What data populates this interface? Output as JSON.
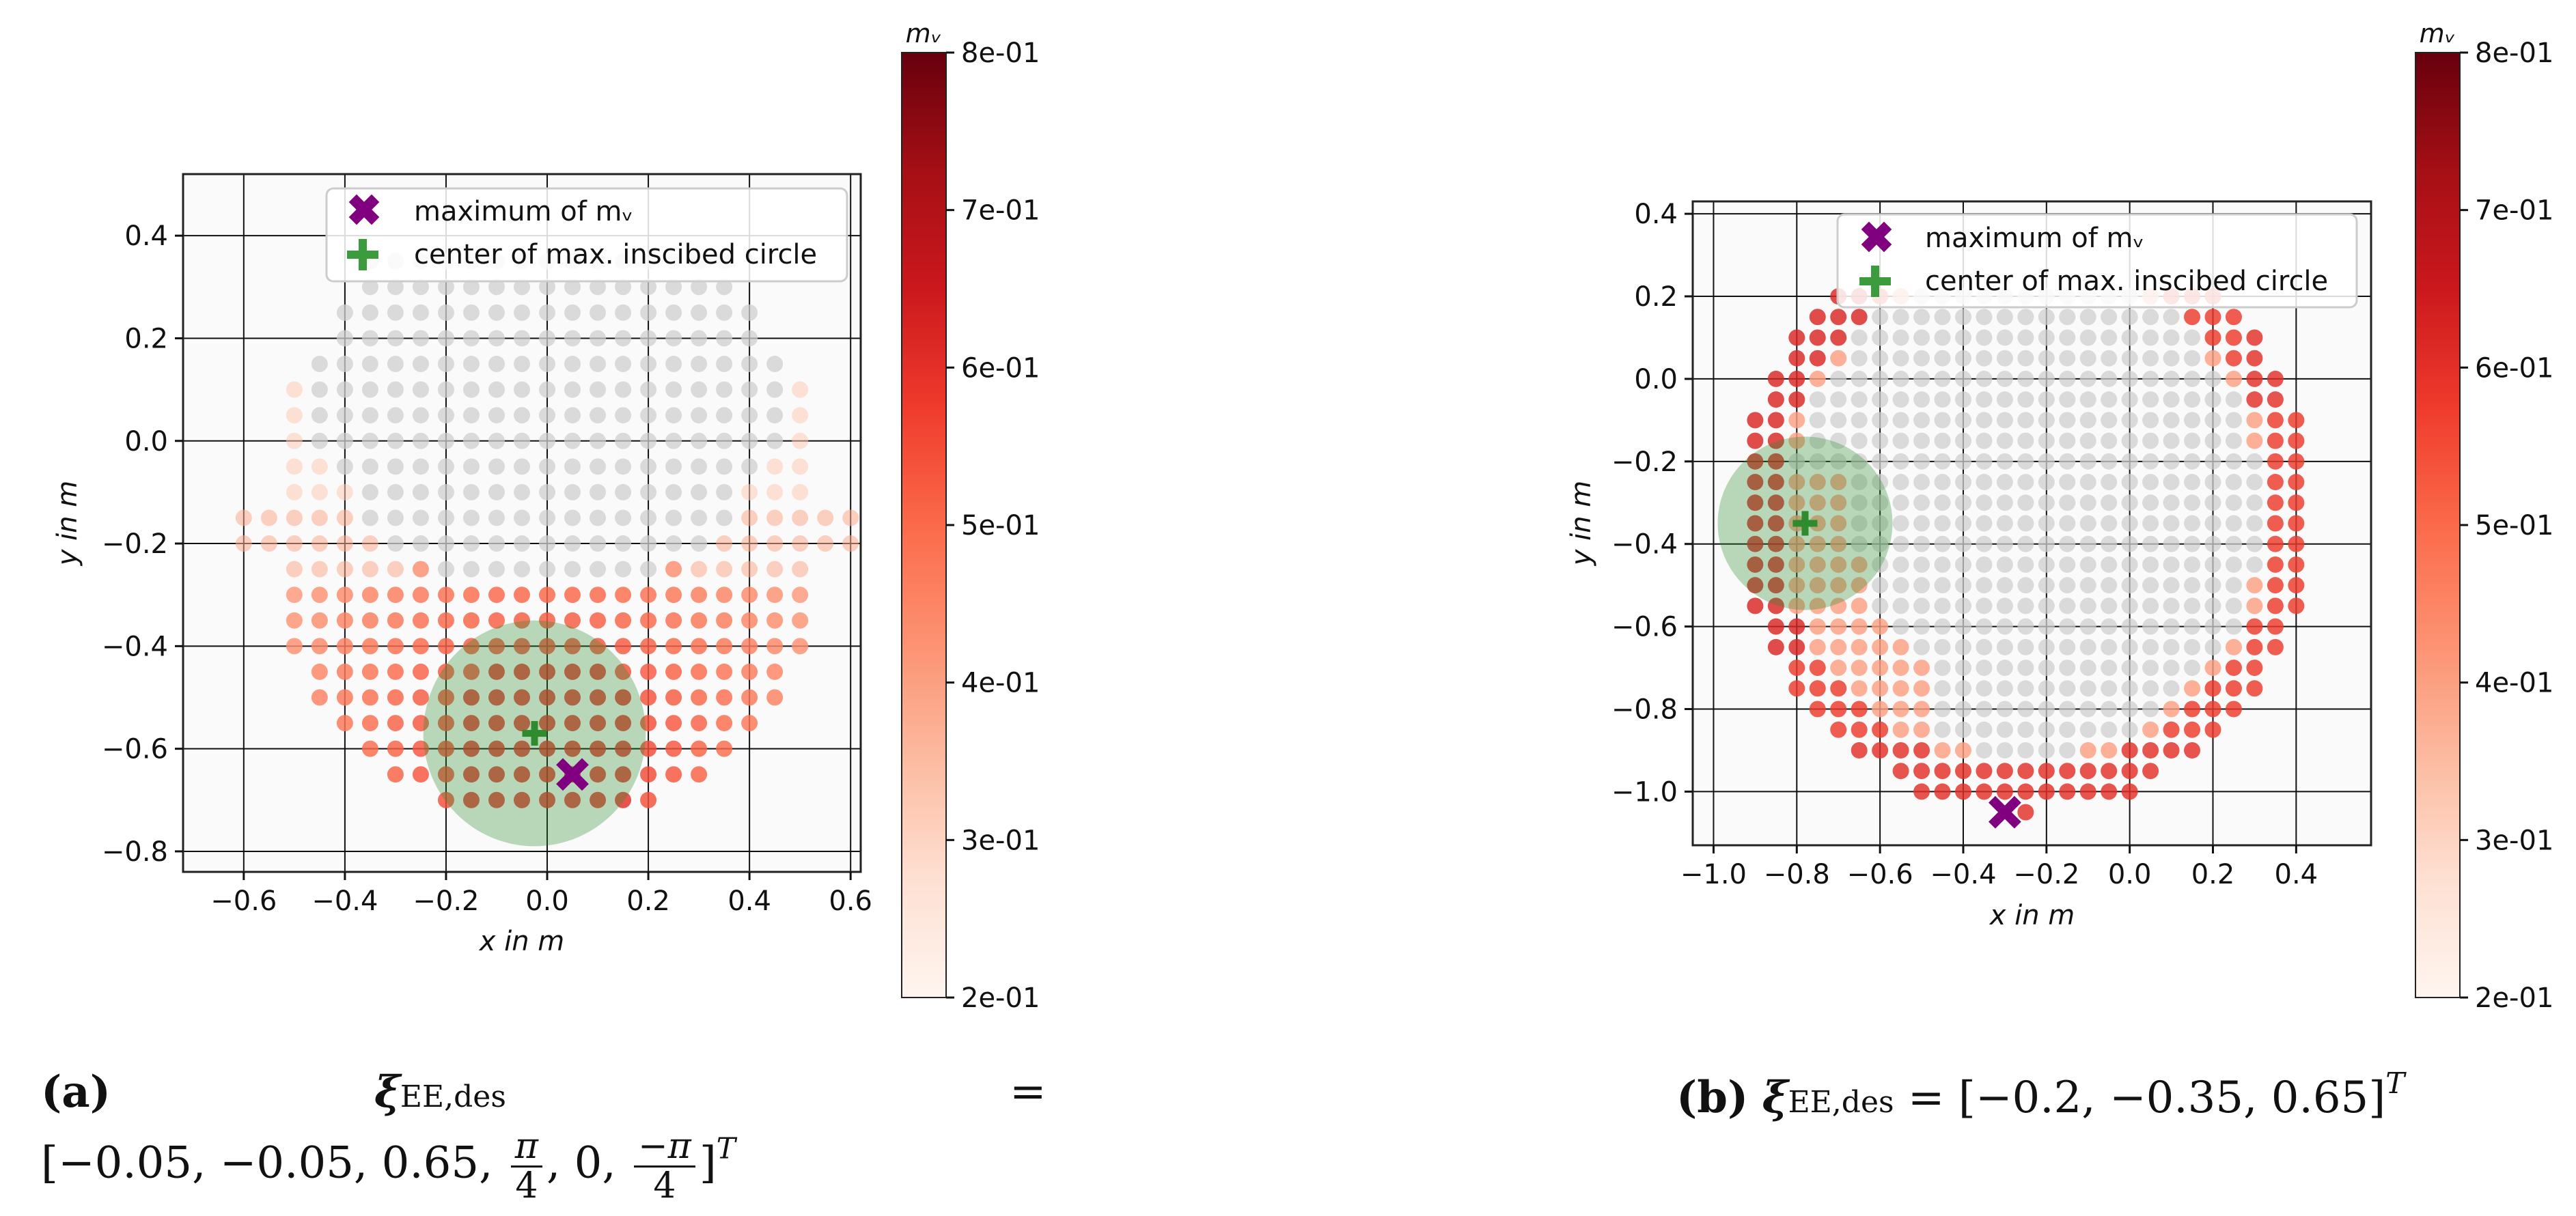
{
  "chart_data": [
    {
      "type": "scatter",
      "panel": "a",
      "xlabel": "x in m",
      "ylabel": "y in m",
      "xlim": [
        -0.72,
        0.62
      ],
      "ylim": [
        -0.84,
        0.52
      ],
      "grid": true,
      "xticks": [
        -0.6,
        -0.4,
        -0.2,
        0.0,
        0.2,
        0.4,
        0.6
      ],
      "xtick_labels": [
        "−0.6",
        "−0.4",
        "−0.2",
        "0.0",
        "0.2",
        "0.4",
        "0.6"
      ],
      "yticks": [
        0.4,
        0.2,
        0.0,
        -0.2,
        -0.4,
        -0.6,
        -0.8
      ],
      "ytick_labels": [
        "0.4",
        "0.2",
        "0.0",
        "−0.2",
        "−0.4",
        "−0.6",
        "−0.8"
      ],
      "grid_step": 0.05,
      "workspace_description": "U-shaped reachable region; unreachable points grey",
      "maximum_mv": {
        "x": 0.05,
        "y": -0.65
      },
      "max_inscribed_circle": {
        "x": -0.025,
        "y": -0.57,
        "r": 0.22
      },
      "legend": [
        "maximum of mᵥ",
        "center of max. inscibed circle"
      ],
      "colorbar": {
        "label": "mᵥ",
        "min": 0.2,
        "max": 0.8,
        "ticks": [
          "8e-01",
          "7e-01",
          "6e-01",
          "5e-01",
          "4e-01",
          "3e-01",
          "2e-01"
        ]
      },
      "caption": "(a) ξ_EE,des = [−0.05, −0.05, 0.65, π/4, 0, −π/4]^T"
    },
    {
      "type": "scatter",
      "panel": "b",
      "xlabel": "x in m",
      "ylabel": "y in m",
      "xlim": [
        -1.05,
        0.58
      ],
      "ylim": [
        -1.13,
        0.43
      ],
      "grid": true,
      "xticks": [
        -1.0,
        -0.8,
        -0.6,
        -0.4,
        -0.2,
        0.0,
        0.2,
        0.4
      ],
      "xtick_labels": [
        "−1.0",
        "−0.8",
        "−0.6",
        "−0.4",
        "−0.2",
        "0.0",
        "0.2",
        "0.4"
      ],
      "yticks": [
        0.4,
        0.2,
        0.0,
        -0.2,
        -0.4,
        -0.6,
        -0.8,
        -1.0
      ],
      "ytick_labels": [
        "0.4",
        "0.2",
        "0.0",
        "−0.2",
        "−0.4",
        "−0.6",
        "−0.8",
        "−1.0"
      ],
      "grid_step": 0.05,
      "workspace_description": "ring-shaped reachable region; interior points grey",
      "maximum_mv": {
        "x": -0.3,
        "y": -1.05
      },
      "max_inscribed_circle": {
        "x": -0.78,
        "y": -0.35,
        "r": 0.21
      },
      "legend": [
        "maximum of mᵥ",
        "center of max. inscibed circle"
      ],
      "colorbar": {
        "label": "mᵥ",
        "min": 0.2,
        "max": 0.8,
        "ticks": [
          "8e-01",
          "7e-01",
          "6e-01",
          "5e-01",
          "4e-01",
          "3e-01",
          "2e-01"
        ]
      },
      "caption": "(b) ξ_EE,des = [−0.2, −0.35, 0.65]^T"
    }
  ],
  "captions": {
    "a": {
      "label": "(a)",
      "xi": "ξ",
      "sub": "EE,des",
      "eq": "=",
      "line2_pre": "[−0.05,  −0.05,  0.65,",
      "frac1_num": "π",
      "frac1_den": "4",
      "mid": ",  0,",
      "frac2_num": "−π",
      "frac2_den": "4",
      "close": "]",
      "sup": "T"
    },
    "b": {
      "label": "(b)",
      "xi": "ξ",
      "sub": "EE,des",
      "expr": "= [−0.2,  −0.35,  0.65]",
      "sup": "T"
    }
  },
  "colors": {
    "grey_point": "#cfcfcf",
    "max_marker": "#800080",
    "center_marker": "#3c9b3c",
    "circle_fill": "#2e8b2e"
  }
}
